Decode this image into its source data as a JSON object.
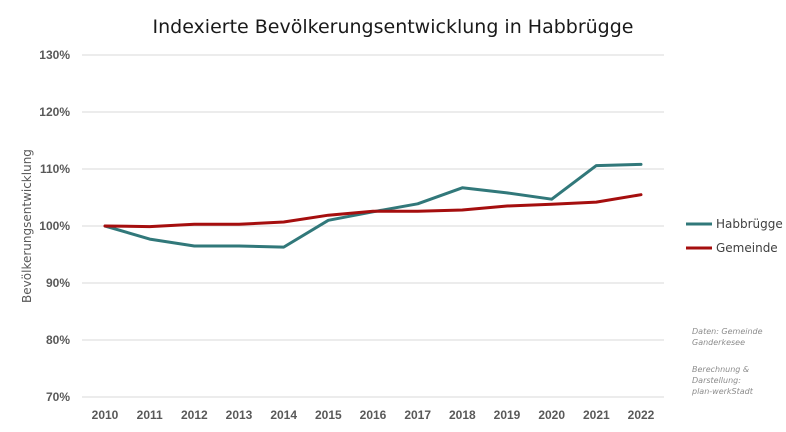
{
  "chart_data": {
    "type": "line",
    "title": "Indexierte Bevölkerungsentwicklung  in Habbrügge",
    "xlabel": "",
    "ylabel": "Bevölkerungsentwicklung",
    "ylim": [
      70,
      130
    ],
    "y_ticks": [
      70,
      80,
      90,
      100,
      110,
      120,
      130
    ],
    "y_tick_labels": [
      "70%",
      "80%",
      "90%",
      "100%",
      "110%",
      "120%",
      "130%"
    ],
    "categories": [
      "2010",
      "2011",
      "2012",
      "2013",
      "2014",
      "2015",
      "2016",
      "2017",
      "2018",
      "2019",
      "2020",
      "2021",
      "2022"
    ],
    "grid": "horizontal",
    "legend_position": "right",
    "series": [
      {
        "name": "Habbrügge",
        "color": "#31787a",
        "values": [
          100.0,
          97.7,
          96.5,
          96.5,
          96.3,
          101.0,
          102.5,
          103.9,
          106.7,
          105.8,
          104.7,
          110.6,
          110.8
        ]
      },
      {
        "name": "Gemeinde",
        "color": "#a50e0e",
        "values": [
          100.0,
          99.9,
          100.3,
          100.3,
          100.7,
          101.9,
          102.6,
          102.6,
          102.8,
          103.5,
          103.8,
          104.2,
          105.5
        ]
      }
    ],
    "annotations": [
      [
        "Daten: Gemeinde",
        "Ganderkesee"
      ],
      [
        "Berechnung  &",
        "Darstellung:",
        "plan-werkStadt"
      ]
    ]
  },
  "colors": {
    "gridline": "#d9d9d9",
    "background": "#ffffff"
  }
}
